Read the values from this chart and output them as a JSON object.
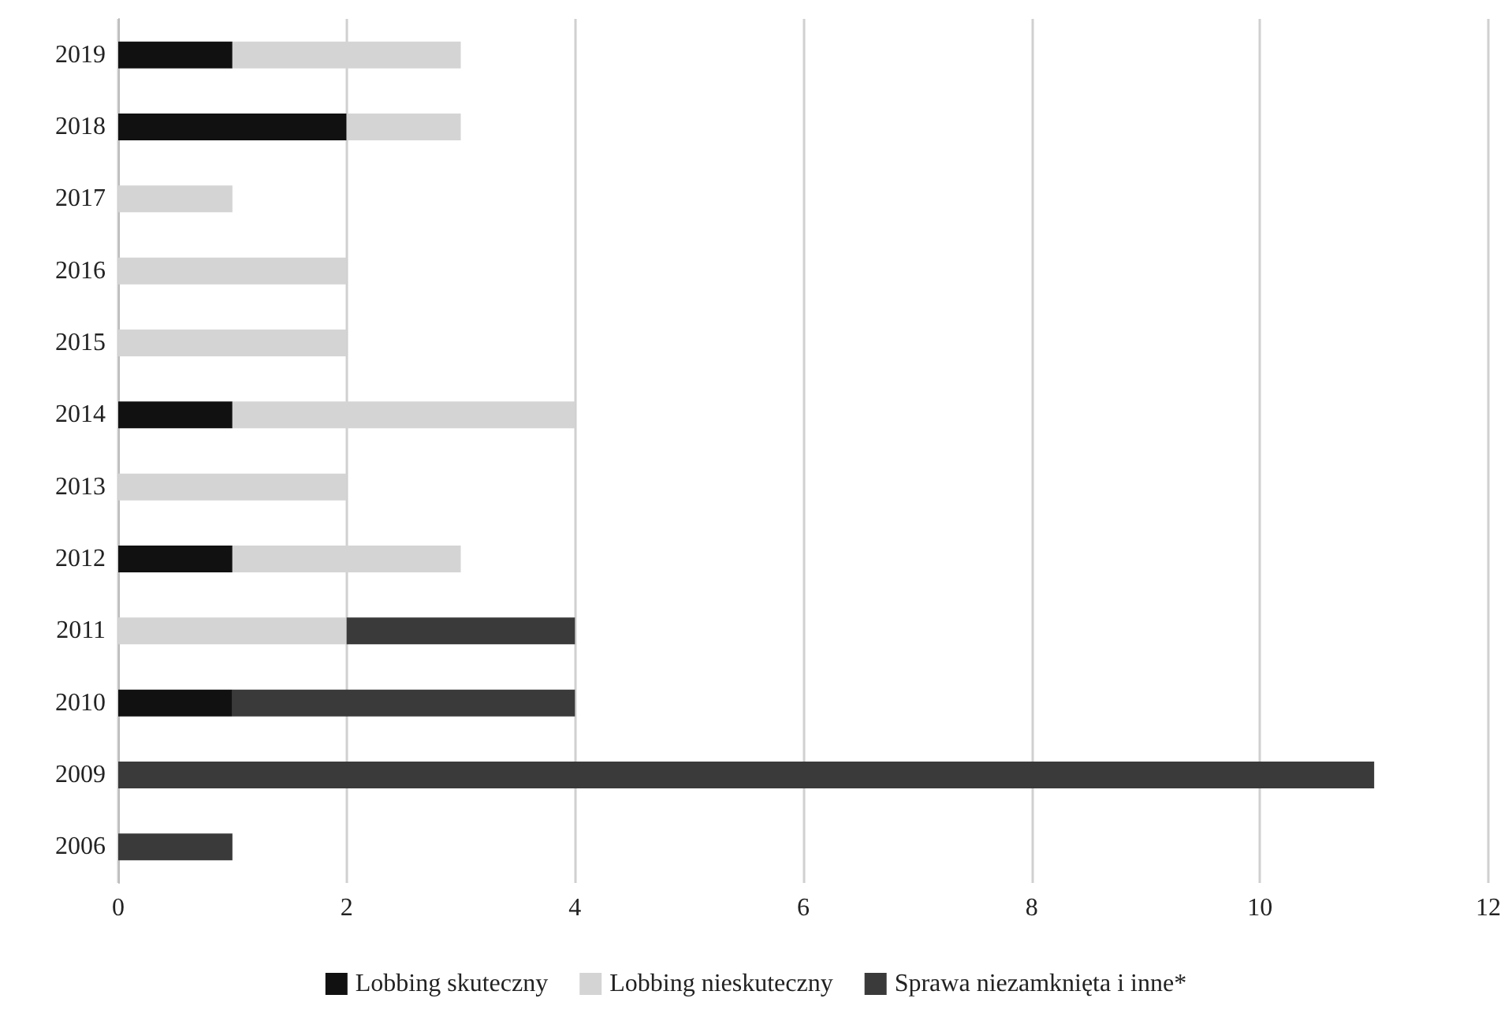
{
  "chart_data": {
    "type": "bar",
    "orientation": "horizontal",
    "stacked": true,
    "categories": [
      "2019",
      "2018",
      "2017",
      "2016",
      "2015",
      "2014",
      "2013",
      "2012",
      "2011",
      "2010",
      "2009",
      "2006"
    ],
    "series": [
      {
        "name": "Lobbing skuteczny",
        "color": "#111111",
        "values": [
          1,
          2,
          0,
          0,
          0,
          1,
          0,
          1,
          0,
          1,
          0,
          0
        ]
      },
      {
        "name": "Lobbing nieskuteczny",
        "color": "#d4d4d4",
        "values": [
          2,
          1,
          1,
          2,
          2,
          3,
          2,
          2,
          2,
          0,
          0,
          0
        ]
      },
      {
        "name": "Sprawa niezamknięta i inne*",
        "color": "#3a3a3a",
        "values": [
          0,
          0,
          0,
          0,
          0,
          0,
          0,
          0,
          2,
          3,
          11,
          1
        ]
      }
    ],
    "xlim": [
      0,
      12
    ],
    "xticks": [
      0,
      2,
      4,
      6,
      8,
      10,
      12
    ],
    "grid": "x",
    "legend": "bottom"
  }
}
